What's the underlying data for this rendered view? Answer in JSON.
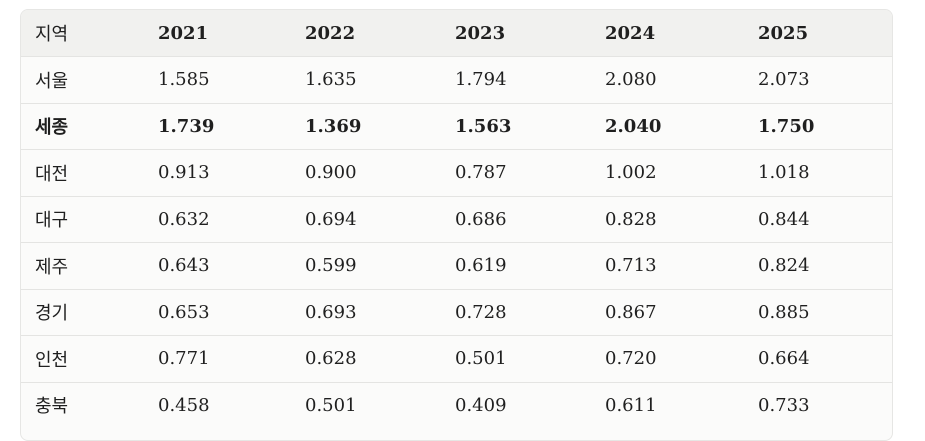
{
  "table": {
    "headers": [
      "지역",
      "2021",
      "2022",
      "2023",
      "2024",
      "2025"
    ],
    "rows": [
      {
        "region": "서울",
        "values": [
          "1.585",
          "1.635",
          "1.794",
          "2.080",
          "2.073"
        ],
        "bold": false
      },
      {
        "region": "세종",
        "values": [
          "1.739",
          "1.369",
          "1.563",
          "2.040",
          "1.750"
        ],
        "bold": true
      },
      {
        "region": "대전",
        "values": [
          "0.913",
          "0.900",
          "0.787",
          "1.002",
          "1.018"
        ],
        "bold": false
      },
      {
        "region": "대구",
        "values": [
          "0.632",
          "0.694",
          "0.686",
          "0.828",
          "0.844"
        ],
        "bold": false
      },
      {
        "region": "제주",
        "values": [
          "0.643",
          "0.599",
          "0.619",
          "0.713",
          "0.824"
        ],
        "bold": false
      },
      {
        "region": "경기",
        "values": [
          "0.653",
          "0.693",
          "0.728",
          "0.867",
          "0.885"
        ],
        "bold": false
      },
      {
        "region": "인천",
        "values": [
          "0.771",
          "0.628",
          "0.501",
          "0.720",
          "0.664"
        ],
        "bold": false
      },
      {
        "region": "충북",
        "values": [
          "0.458",
          "0.501",
          "0.409",
          "0.611",
          "0.733"
        ],
        "bold": false
      }
    ]
  }
}
